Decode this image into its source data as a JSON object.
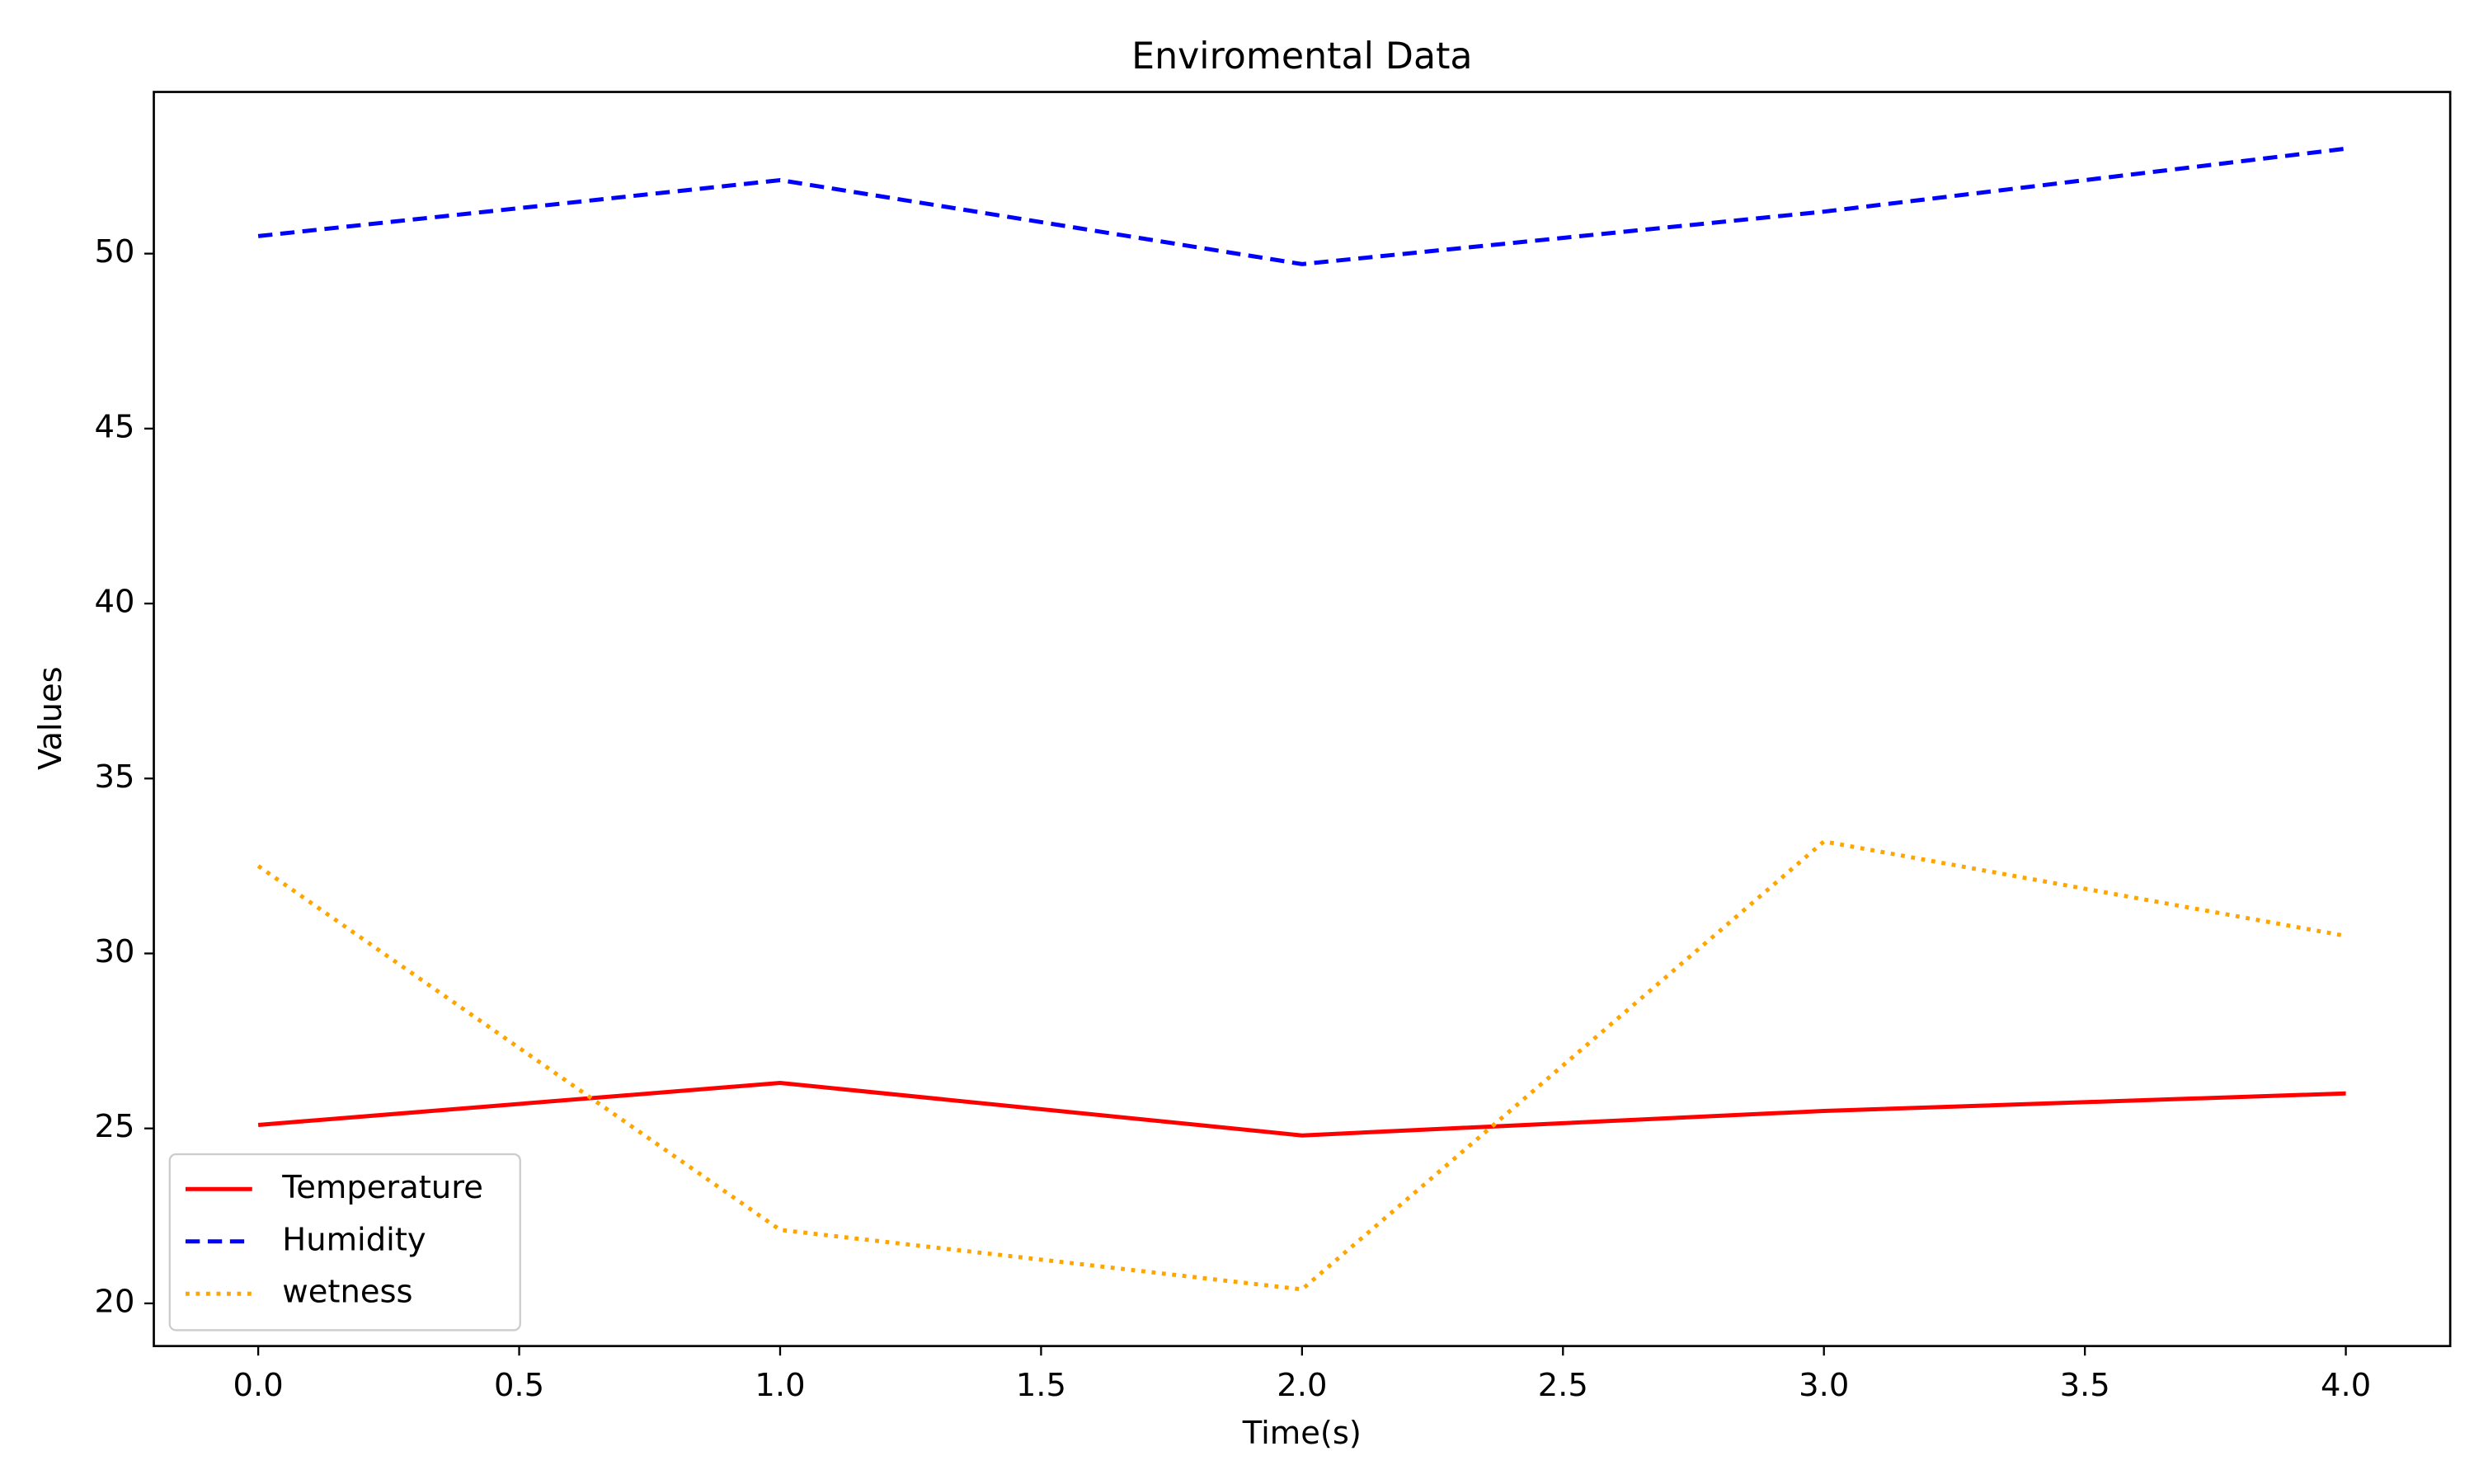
{
  "chart_data": {
    "type": "line",
    "title": "Enviromental Data",
    "x_label": "Time(s)",
    "y_label": "Values",
    "x": [
      0,
      1,
      2,
      3,
      4
    ],
    "series": [
      {
        "name": "Temperature",
        "color": "#ff0000",
        "style": "solid",
        "values": [
          25.1,
          26.3,
          24.8,
          25.5,
          26.0
        ]
      },
      {
        "name": "Humidity",
        "color": "#0000ff",
        "style": "dashed",
        "values": [
          50.5,
          52.1,
          49.7,
          51.2,
          53.0
        ]
      },
      {
        "name": "wetness",
        "color": "#ffa500",
        "style": "dotted",
        "values": [
          32.5,
          22.1,
          20.4,
          33.2,
          30.5
        ]
      }
    ],
    "xlim": [
      -0.2,
      4.2
    ],
    "xticks": [
      {
        "value": 0,
        "label": "0.0"
      },
      {
        "value": 0.5,
        "label": "0.5"
      },
      {
        "value": 1,
        "label": "1.0"
      },
      {
        "value": 1.5,
        "label": "1.5"
      },
      {
        "value": 2,
        "label": "2.0"
      },
      {
        "value": 2.5,
        "label": "2.5"
      },
      {
        "value": 3,
        "label": "3.0"
      },
      {
        "value": 3.5,
        "label": "3.5"
      },
      {
        "value": 4,
        "label": "4.0"
      }
    ],
    "ylim": [
      18.78,
      54.62
    ],
    "yticks": [
      20,
      25,
      30,
      35,
      40,
      45,
      50
    ],
    "legend": "lower left"
  }
}
